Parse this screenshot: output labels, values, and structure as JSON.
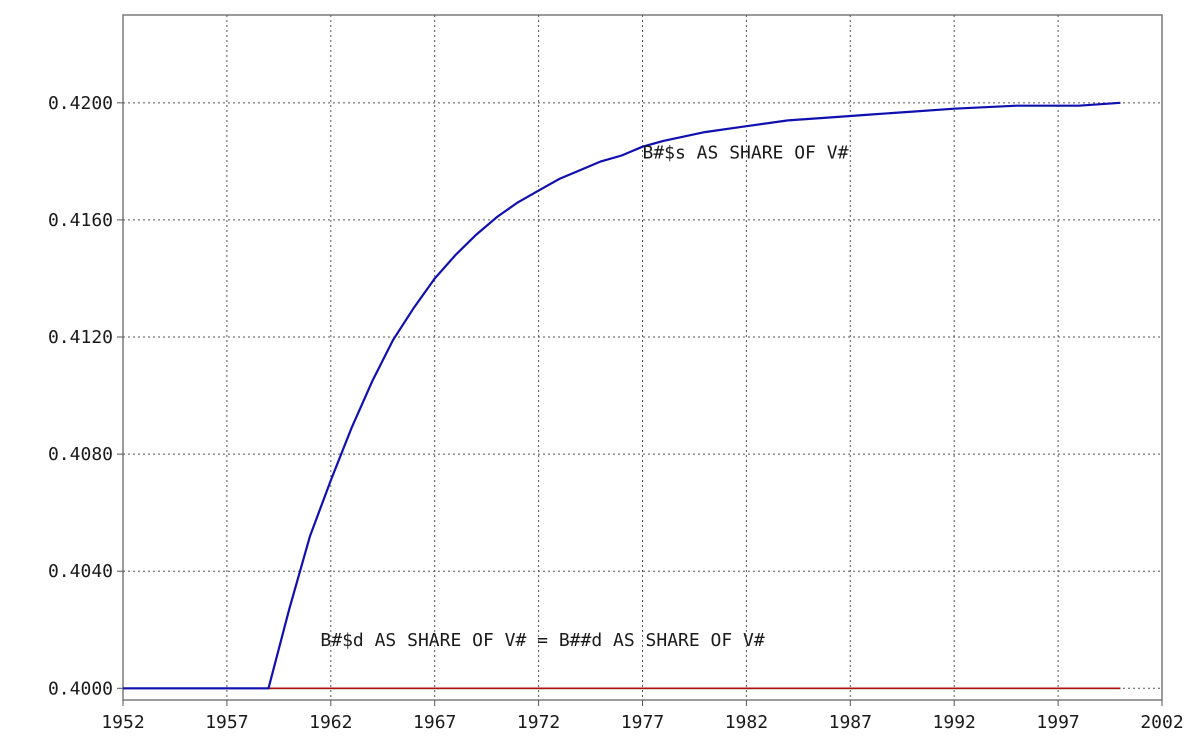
{
  "chart_data": {
    "type": "line",
    "title": "",
    "xlabel": "",
    "ylabel": "",
    "xlim": [
      1952,
      2002
    ],
    "ylim": [
      0.3996,
      0.423
    ],
    "grid": true,
    "x_ticks": [
      1952,
      1957,
      1962,
      1967,
      1972,
      1977,
      1982,
      1987,
      1992,
      1997,
      2002
    ],
    "x_tick_labels": [
      "1952",
      "1957",
      "1962",
      "1967",
      "1972",
      "1977",
      "1982",
      "1987",
      "1992",
      "1997",
      "2002"
    ],
    "y_ticks": [
      0.4,
      0.404,
      0.408,
      0.412,
      0.416,
      0.42
    ],
    "y_tick_labels": [
      "0.4000",
      "0.4040",
      "0.4080",
      "0.4120",
      "0.4160",
      "0.4200"
    ],
    "series": [
      {
        "name": "B#$s AS SHARE OF V#",
        "color": "#1010b0",
        "x": [
          1952,
          1959,
          1960,
          1961,
          1962,
          1963,
          1964,
          1965,
          1966,
          1967,
          1968,
          1969,
          1970,
          1971,
          1972,
          1973,
          1974,
          1975,
          1976,
          1977,
          1978,
          1980,
          1982,
          1984,
          1986,
          1988,
          1990,
          1992,
          1995,
          1998,
          2000
        ],
        "values": [
          0.4,
          0.4,
          0.4027,
          0.4052,
          0.4071,
          0.4089,
          0.4105,
          0.4119,
          0.413,
          0.414,
          0.4148,
          0.4155,
          0.4161,
          0.4166,
          0.417,
          0.4174,
          0.4177,
          0.418,
          0.4182,
          0.4185,
          0.4187,
          0.419,
          0.4192,
          0.4194,
          0.4195,
          0.4196,
          0.4197,
          0.4198,
          0.4199,
          0.4199,
          0.42
        ]
      },
      {
        "name": "B#$d AS SHARE OF V# = B##d AS SHARE OF V#",
        "color": "#b01010",
        "x": [
          1952,
          2000
        ],
        "values": [
          0.4,
          0.4
        ]
      },
      {
        "name": "",
        "color": "#108010",
        "x": [
          1952,
          2000
        ],
        "values": [
          0.4,
          0.4
        ]
      }
    ],
    "annotations": [
      {
        "text": "B#$s AS SHARE OF V#",
        "x": 1977,
        "y": 0.4181
      },
      {
        "text": "B#$d AS SHARE OF V# = B##d AS SHARE OF V#",
        "x": 1961.5,
        "y": 0.40145
      }
    ]
  }
}
